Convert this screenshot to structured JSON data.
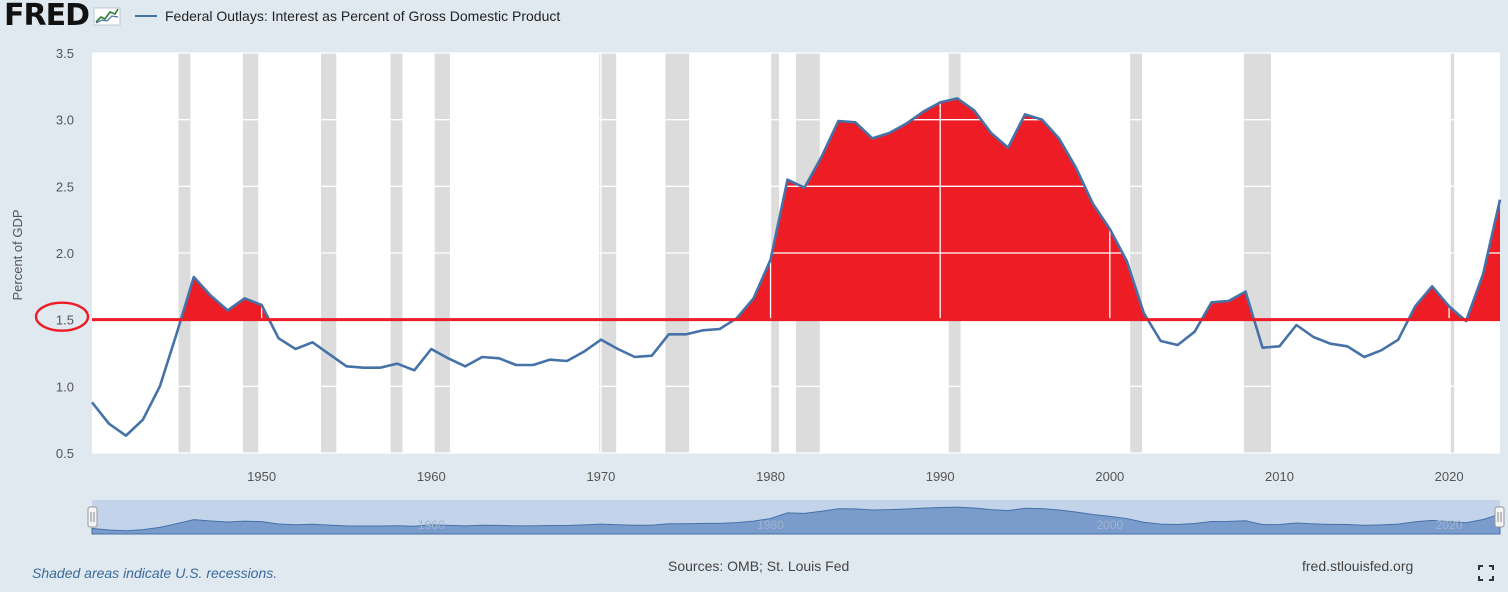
{
  "header": {
    "logo_text": "FRED",
    "logo_icon": "mini-line-chart-icon",
    "legend_label": "Federal Outlays: Interest as Percent of Gross Domestic Product"
  },
  "footer": {
    "recession_note": "Shaded areas indicate U.S. recessions.",
    "sources": "Sources: OMB; St. Louis Fed",
    "site": "fred.stlouisfed.org",
    "fullscreen_icon": "fullscreen-icon"
  },
  "colors": {
    "series": "#4572a7",
    "highlight_fill": "#ee1c25",
    "threshold_line": "#ee1c25",
    "recession_band": "#dcdcdc",
    "plot_background": "#ffffff",
    "page_background": "#e1e9f0"
  },
  "chart_data": {
    "type": "line",
    "title": "",
    "xlabel": "",
    "ylabel": "Percent of GDP",
    "xlim": [
      1940,
      2023
    ],
    "ylim": [
      0.5,
      3.5
    ],
    "yticks": [
      "0.5",
      "1.0",
      "1.5",
      "2.0",
      "2.5",
      "3.0",
      "3.5"
    ],
    "xticks": [
      "1950",
      "1960",
      "1970",
      "1980",
      "1990",
      "2000",
      "2010",
      "2020"
    ],
    "threshold": 1.5,
    "threshold_label": "1.5",
    "grid": true,
    "series": [
      {
        "name": "Federal Outlays: Interest as Percent of Gross Domestic Product",
        "x": [
          1940,
          1941,
          1942,
          1943,
          1944,
          1945,
          1946,
          1947,
          1948,
          1949,
          1950,
          1951,
          1952,
          1953,
          1954,
          1955,
          1956,
          1957,
          1958,
          1959,
          1960,
          1961,
          1962,
          1963,
          1964,
          1965,
          1966,
          1967,
          1968,
          1969,
          1970,
          1971,
          1972,
          1973,
          1974,
          1975,
          1976,
          1977,
          1978,
          1979,
          1980,
          1981,
          1982,
          1983,
          1984,
          1985,
          1986,
          1987,
          1988,
          1989,
          1990,
          1991,
          1992,
          1993,
          1994,
          1995,
          1996,
          1997,
          1998,
          1999,
          2000,
          2001,
          2002,
          2003,
          2004,
          2005,
          2006,
          2007,
          2008,
          2009,
          2010,
          2011,
          2012,
          2013,
          2014,
          2015,
          2016,
          2017,
          2018,
          2019,
          2020,
          2021,
          2022,
          2023
        ],
        "values": [
          0.88,
          0.72,
          0.63,
          0.75,
          1.0,
          1.4,
          1.82,
          1.68,
          1.57,
          1.66,
          1.61,
          1.36,
          1.28,
          1.33,
          1.24,
          1.15,
          1.14,
          1.14,
          1.17,
          1.12,
          1.28,
          1.21,
          1.15,
          1.22,
          1.21,
          1.16,
          1.16,
          1.2,
          1.19,
          1.26,
          1.35,
          1.28,
          1.22,
          1.23,
          1.39,
          1.39,
          1.42,
          1.43,
          1.51,
          1.66,
          1.95,
          2.55,
          2.49,
          2.72,
          2.99,
          2.98,
          2.86,
          2.9,
          2.97,
          3.06,
          3.13,
          3.16,
          3.07,
          2.9,
          2.79,
          3.04,
          3.0,
          2.86,
          2.64,
          2.37,
          2.18,
          1.94,
          1.55,
          1.34,
          1.31,
          1.41,
          1.63,
          1.64,
          1.71,
          1.29,
          1.3,
          1.46,
          1.37,
          1.32,
          1.3,
          1.22,
          1.27,
          1.35,
          1.6,
          1.75,
          1.6,
          1.49,
          1.84,
          2.4
        ]
      }
    ],
    "recessions": [
      [
        1945.1,
        1945.8
      ],
      [
        1948.9,
        1949.8
      ],
      [
        1953.5,
        1954.4
      ],
      [
        1957.6,
        1958.3
      ],
      [
        1960.2,
        1961.1
      ],
      [
        1969.9,
        1970.9
      ],
      [
        1973.8,
        1975.2
      ],
      [
        1980.0,
        1980.5
      ],
      [
        1981.5,
        1982.9
      ],
      [
        1990.5,
        1991.2
      ],
      [
        2001.2,
        2001.9
      ],
      [
        2007.9,
        2009.5
      ],
      [
        2020.1,
        2020.3
      ]
    ],
    "highlight": "area above 1.5 shaded red",
    "navigator_ticks": [
      "1960",
      "1980",
      "2000",
      "2020"
    ]
  }
}
